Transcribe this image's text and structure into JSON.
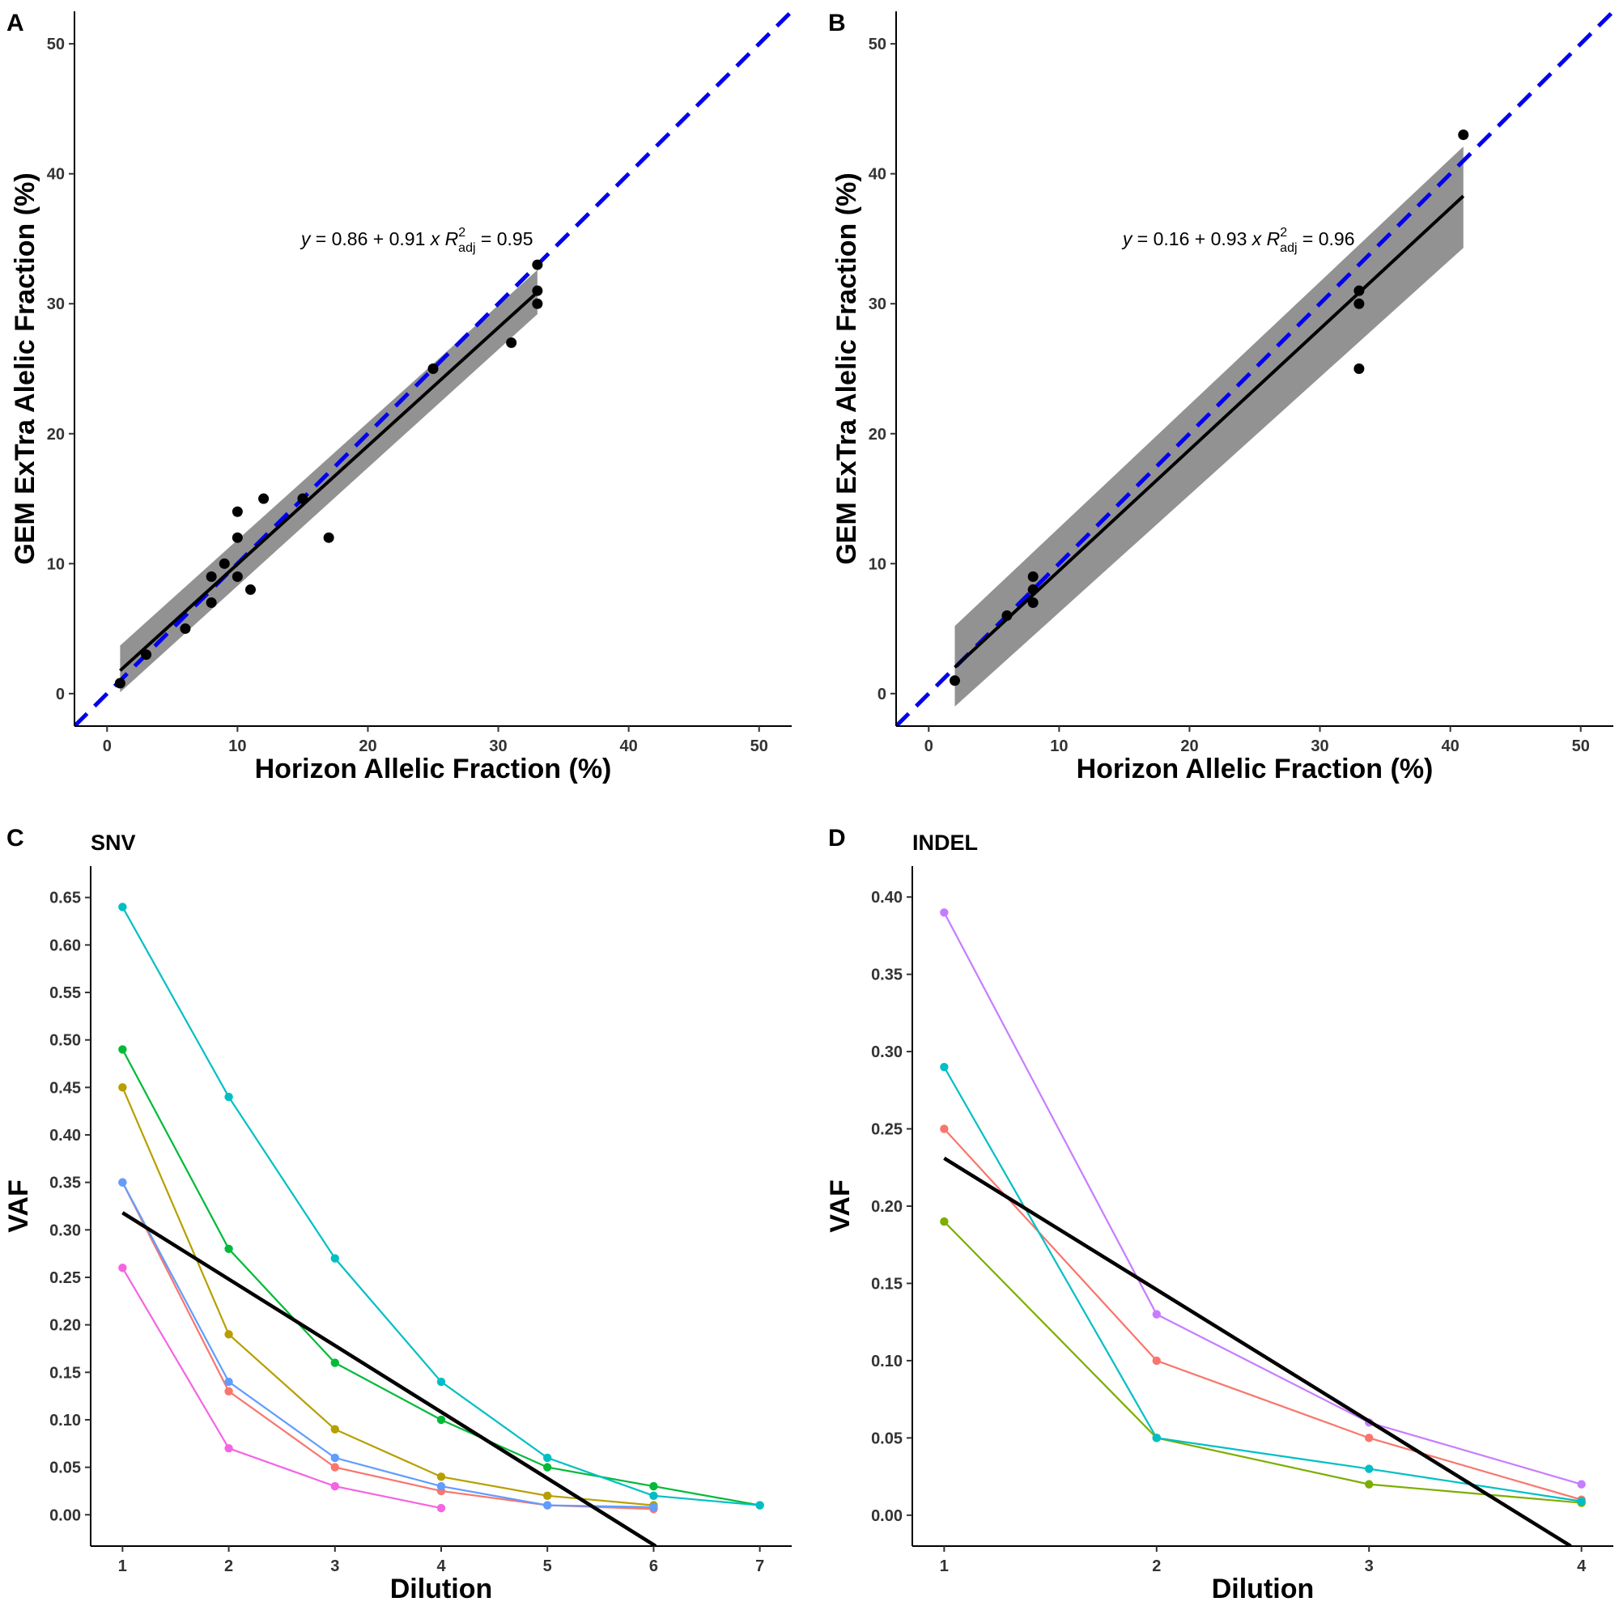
{
  "colors": {
    "identity_line": "#0000ee",
    "fit_line": "#000000",
    "ribbon": "#7f7f7f",
    "points": "#000000"
  },
  "chart_data": [
    {
      "panel": "A",
      "type": "scatter",
      "xlabel": "Horizon Allelic Fraction (%)",
      "ylabel": "GEM ExTra Alelic Fraction (%)",
      "xlim": [
        -2.5,
        52.5
      ],
      "ylim": [
        -2.5,
        52.5
      ],
      "xticks": [
        "0",
        "10",
        "20",
        "30",
        "40",
        "50"
      ],
      "yticks": [
        "0",
        "10",
        "20",
        "30",
        "40",
        "50"
      ],
      "equation": {
        "y": "y",
        "eq": "= 0.86 + 0.91",
        "x": "x",
        "r": "R",
        "sup": "2",
        "sub": "adj",
        "rval": "= 0.95"
      },
      "fit": {
        "intercept": 0.86,
        "slope": 0.91,
        "xrange": [
          1,
          33
        ],
        "ribbon_lower": [
          0.1,
          29.2
        ],
        "ribbon_upper": [
          3.7,
          32.6
        ]
      },
      "points": [
        {
          "x": 1,
          "y": 0.8
        },
        {
          "x": 3,
          "y": 3
        },
        {
          "x": 6,
          "y": 5
        },
        {
          "x": 8,
          "y": 7
        },
        {
          "x": 8,
          "y": 9
        },
        {
          "x": 9,
          "y": 10
        },
        {
          "x": 10,
          "y": 9
        },
        {
          "x": 10,
          "y": 12
        },
        {
          "x": 10,
          "y": 14
        },
        {
          "x": 11,
          "y": 8
        },
        {
          "x": 12,
          "y": 15
        },
        {
          "x": 15,
          "y": 15
        },
        {
          "x": 17,
          "y": 12
        },
        {
          "x": 25,
          "y": 25
        },
        {
          "x": 31,
          "y": 27
        },
        {
          "x": 33,
          "y": 30
        },
        {
          "x": 33,
          "y": 31
        },
        {
          "x": 33,
          "y": 33
        }
      ]
    },
    {
      "panel": "B",
      "type": "scatter",
      "xlabel": "Horizon Allelic Fraction (%)",
      "ylabel": "GEM ExTra Alelic Fraction (%)",
      "xlim": [
        -2.5,
        52.5
      ],
      "ylim": [
        -2.5,
        52.5
      ],
      "xticks": [
        "0",
        "10",
        "20",
        "30",
        "40",
        "50"
      ],
      "yticks": [
        "0",
        "10",
        "20",
        "30",
        "40",
        "50"
      ],
      "equation": {
        "y": "y",
        "eq": "= 0.16 + 0.93",
        "x": "x",
        "r": "R",
        "sup": "2",
        "sub": "adj",
        "rval": "= 0.96"
      },
      "fit": {
        "intercept": 0.16,
        "slope": 0.93,
        "xrange": [
          2,
          41
        ],
        "ribbon_lower": [
          -1.0,
          34.3
        ],
        "ribbon_upper": [
          5.2,
          42.1
        ]
      },
      "points": [
        {
          "x": 2,
          "y": 1
        },
        {
          "x": 6,
          "y": 6
        },
        {
          "x": 8,
          "y": 7
        },
        {
          "x": 8,
          "y": 8
        },
        {
          "x": 8,
          "y": 9
        },
        {
          "x": 33,
          "y": 25
        },
        {
          "x": 33,
          "y": 30
        },
        {
          "x": 33,
          "y": 31
        },
        {
          "x": 41,
          "y": 43
        }
      ]
    },
    {
      "panel": "C",
      "type": "line",
      "title": "SNV",
      "xlabel": "Dilution",
      "ylabel": "VAF",
      "xlim": [
        0.7,
        7.3
      ],
      "ylim": [
        -0.033,
        0.683
      ],
      "xticks": [
        "1",
        "2",
        "3",
        "4",
        "5",
        "6",
        "7"
      ],
      "yticks": [
        "0.00",
        "0.05",
        "0.10",
        "0.15",
        "0.20",
        "0.25",
        "0.30",
        "0.35",
        "0.40",
        "0.45",
        "0.50",
        "0.55",
        "0.60",
        "0.65"
      ],
      "fit": {
        "x0": 1,
        "y0": 0.318,
        "x1": 6.02,
        "y1": -0.033
      },
      "series": [
        {
          "color": "#f8766d",
          "x": [
            1,
            2,
            3,
            4,
            5,
            6
          ],
          "values": [
            0.35,
            0.13,
            0.05,
            0.025,
            0.01,
            0.006
          ]
        },
        {
          "color": "#b79f00",
          "x": [
            1,
            2,
            3,
            4,
            5,
            6
          ],
          "values": [
            0.45,
            0.19,
            0.09,
            0.04,
            0.02,
            0.01
          ]
        },
        {
          "color": "#00ba38",
          "x": [
            1,
            2,
            3,
            4,
            5,
            6,
            7
          ],
          "values": [
            0.49,
            0.28,
            0.16,
            0.1,
            0.05,
            0.03,
            0.01
          ]
        },
        {
          "color": "#00bfc4",
          "x": [
            1,
            2,
            3,
            4,
            5,
            6,
            7
          ],
          "values": [
            0.64,
            0.44,
            0.27,
            0.14,
            0.06,
            0.02,
            0.01
          ]
        },
        {
          "color": "#619cff",
          "x": [
            1,
            2,
            3,
            4,
            5,
            6
          ],
          "values": [
            0.35,
            0.14,
            0.06,
            0.03,
            0.01,
            0.008
          ]
        },
        {
          "color": "#f564e3",
          "x": [
            1,
            2,
            3,
            4
          ],
          "values": [
            0.26,
            0.07,
            0.03,
            0.007
          ]
        }
      ]
    },
    {
      "panel": "D",
      "type": "line",
      "title": "INDEL",
      "xlabel": "Dilution",
      "ylabel": "VAF",
      "xlim": [
        0.85,
        4.15
      ],
      "ylim": [
        -0.02,
        0.42
      ],
      "xticks": [
        "1",
        "2",
        "3",
        "4"
      ],
      "yticks": [
        "0.00",
        "0.05",
        "0.10",
        "0.15",
        "0.20",
        "0.25",
        "0.30",
        "0.35",
        "0.40"
      ],
      "fit": {
        "x0": 1,
        "y0": 0.231,
        "x1": 3.95,
        "y1": -0.02
      },
      "series": [
        {
          "color": "#f8766d",
          "x": [
            1,
            2,
            3,
            4
          ],
          "values": [
            0.25,
            0.1,
            0.05,
            0.01
          ]
        },
        {
          "color": "#7cae00",
          "x": [
            1,
            2,
            3,
            4
          ],
          "values": [
            0.19,
            0.05,
            0.02,
            0.008
          ]
        },
        {
          "color": "#00bfc4",
          "x": [
            1,
            2,
            3,
            4
          ],
          "values": [
            0.29,
            0.05,
            0.03,
            0.009
          ]
        },
        {
          "color": "#c77cff",
          "x": [
            1,
            2,
            3,
            4
          ],
          "values": [
            0.39,
            0.13,
            0.06,
            0.02
          ]
        }
      ]
    }
  ]
}
